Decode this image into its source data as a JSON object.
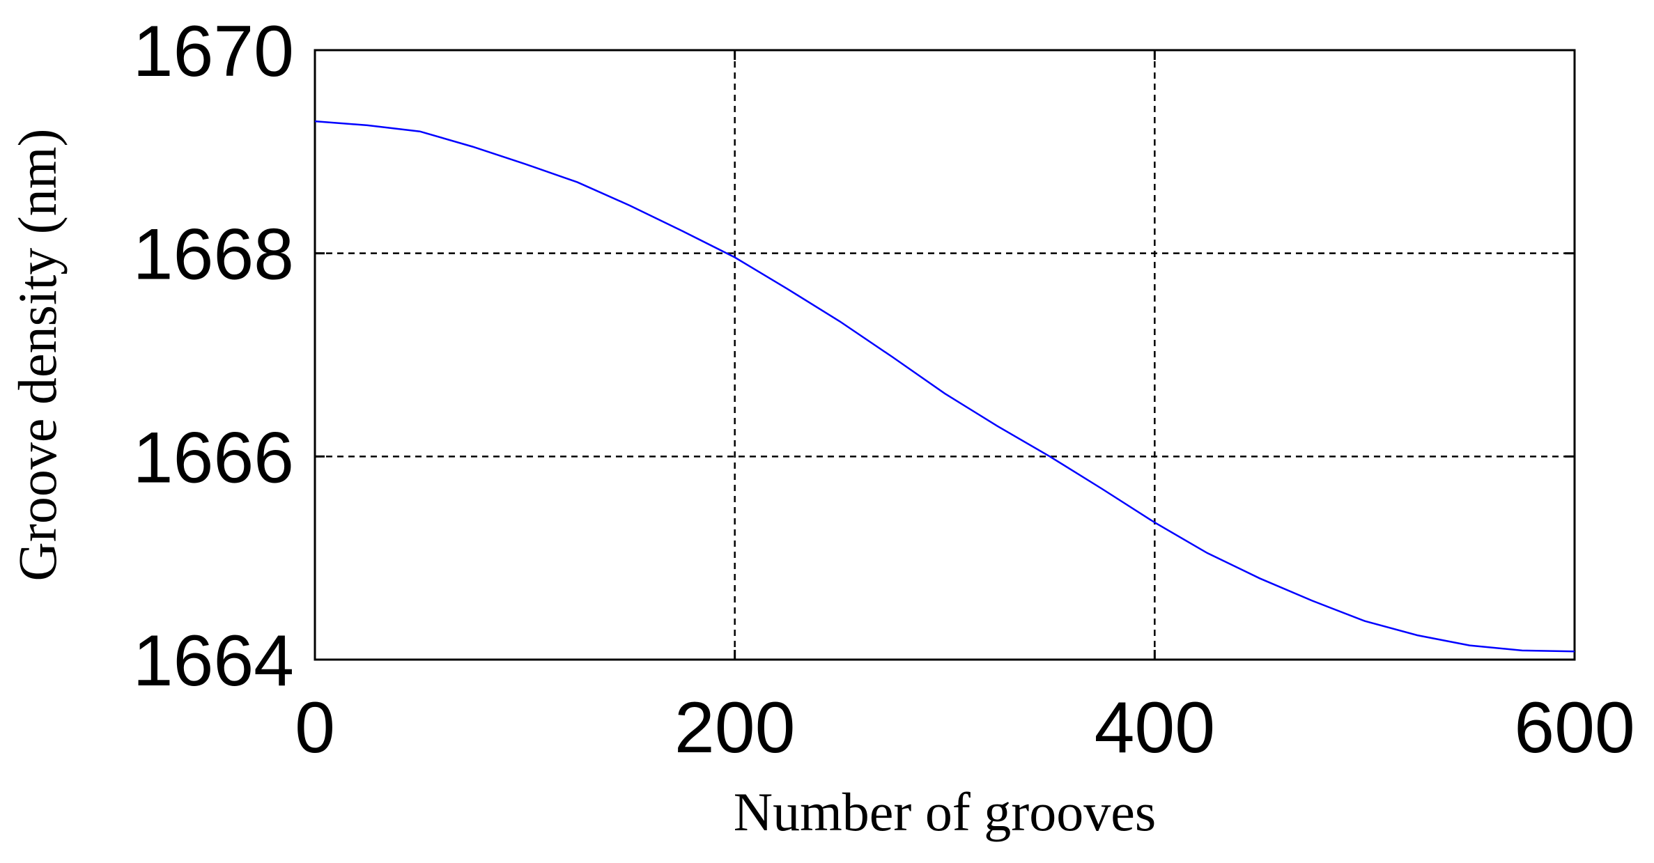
{
  "chart_data": {
    "type": "line",
    "title": "",
    "xlabel": "Number of grooves",
    "ylabel": "Groove density (nm)",
    "xlim": [
      0,
      600
    ],
    "ylim": [
      1664,
      1670
    ],
    "xticks": [
      0,
      200,
      400,
      600
    ],
    "yticks": [
      1664,
      1666,
      1668,
      1670
    ],
    "xtick_labels": [
      "0",
      "200",
      "400",
      "600"
    ],
    "ytick_labels": [
      "1664",
      "1666",
      "1668",
      "1670"
    ],
    "grid": true,
    "legend": "none",
    "series": [
      {
        "color": "#0000ff",
        "x": [
          0,
          25,
          50,
          75,
          100,
          125,
          150,
          175,
          200,
          225,
          250,
          275,
          300,
          325,
          350,
          375,
          400,
          425,
          450,
          475,
          500,
          525,
          550,
          575,
          600
        ],
        "y": [
          1669.3,
          1669.26,
          1669.2,
          1669.05,
          1668.88,
          1668.7,
          1668.47,
          1668.22,
          1667.96,
          1667.65,
          1667.33,
          1666.98,
          1666.62,
          1666.3,
          1666.0,
          1665.68,
          1665.35,
          1665.05,
          1664.8,
          1664.58,
          1664.38,
          1664.24,
          1664.14,
          1664.09,
          1664.08
        ]
      }
    ]
  }
}
